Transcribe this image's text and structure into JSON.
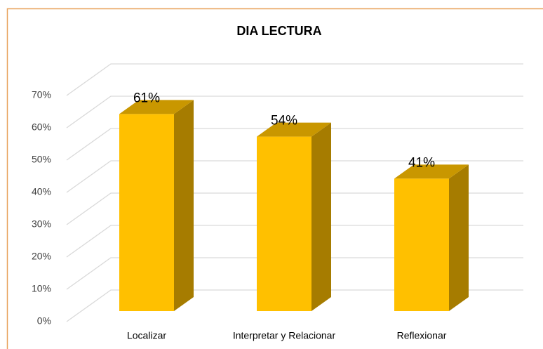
{
  "chart_data": {
    "type": "bar3d",
    "title": "DIA LECTURA",
    "categories": [
      "Localizar",
      "Interpretar y Relacionar",
      "Reflexionar"
    ],
    "values": [
      61,
      54,
      41
    ],
    "value_labels": [
      "61%",
      "54%",
      "41%"
    ],
    "color": "#ffc000",
    "ylim": [
      0,
      70
    ],
    "yticks": [
      {
        "value": 0,
        "label": "0%"
      },
      {
        "value": 10,
        "label": "10%"
      },
      {
        "value": 20,
        "label": "20%"
      },
      {
        "value": 30,
        "label": "30%"
      },
      {
        "value": 40,
        "label": "40%"
      },
      {
        "value": 50,
        "label": "50%"
      },
      {
        "value": 60,
        "label": "60%"
      },
      {
        "value": 70,
        "label": "70%"
      }
    ],
    "grid": true
  }
}
